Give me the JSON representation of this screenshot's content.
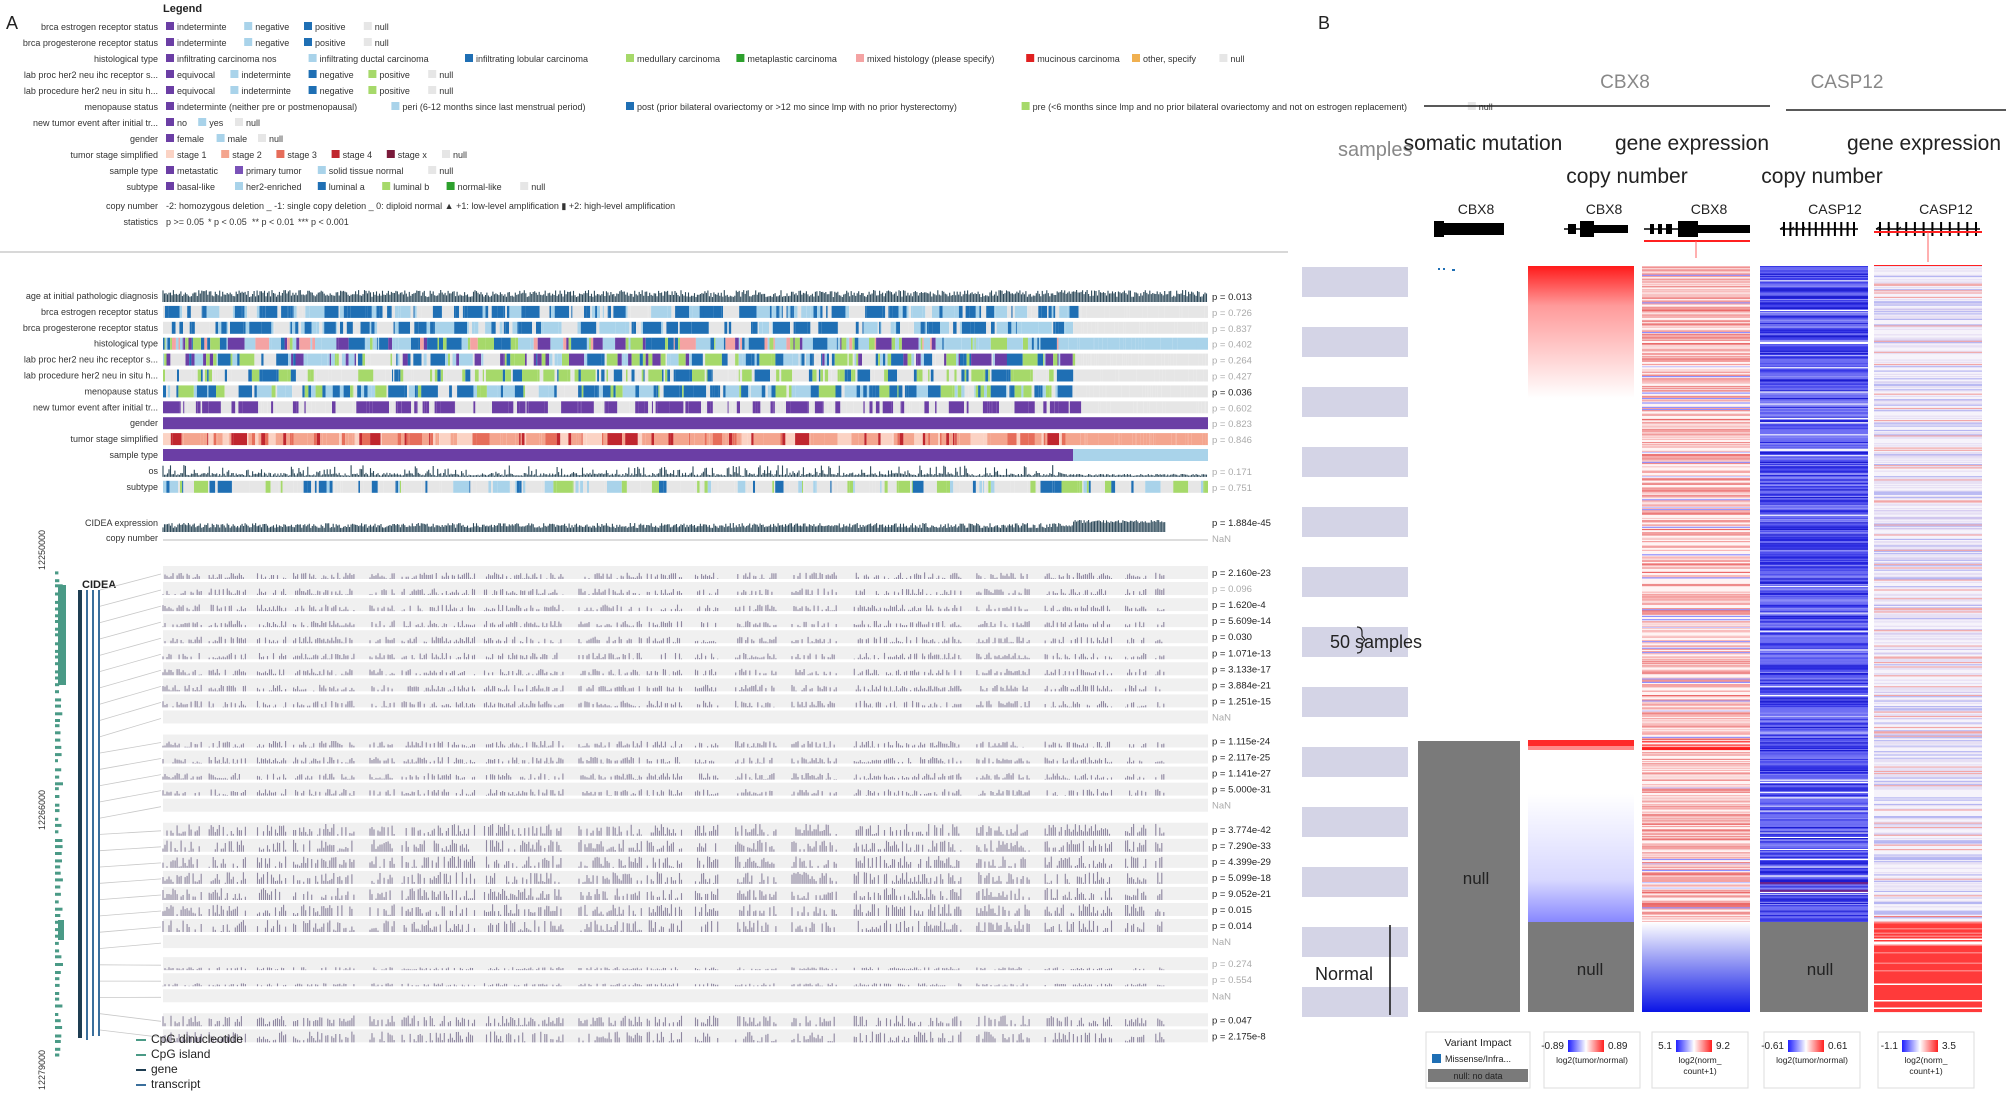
{
  "panel_a": {
    "label": "A",
    "legend_title": "Legend",
    "legend_rows": [
      {
        "label": "brca estrogen receptor status",
        "items": [
          [
            "indeterminte",
            "#6b3ea5"
          ],
          [
            "negative",
            "#a9d3ea"
          ],
          [
            "positive",
            "#1f6fb4"
          ],
          [
            "null",
            "#e6e6e6"
          ]
        ]
      },
      {
        "label": "brca progesterone receptor status",
        "items": [
          [
            "indeterminte",
            "#6b3ea5"
          ],
          [
            "negative",
            "#a9d3ea"
          ],
          [
            "positive",
            "#1f6fb4"
          ],
          [
            "null",
            "#e6e6e6"
          ]
        ]
      },
      {
        "label": "histological type",
        "items": [
          [
            "infiltrating carcinoma nos",
            "#6b3ea5"
          ],
          [
            "infiltrating ductal carcinoma",
            "#a9d3ea"
          ],
          [
            "infiltrating lobular carcinoma",
            "#1f6fb4"
          ],
          [
            "medullary carcinoma",
            "#a6d96a"
          ],
          [
            "metaplastic carcinoma",
            "#2ca02c"
          ],
          [
            "mixed histology (please specify)",
            "#f4a3a3"
          ],
          [
            "mucinous carcinoma",
            "#e02020"
          ],
          [
            "other, specify",
            "#f0b050"
          ],
          [
            "null",
            "#e6e6e6"
          ]
        ]
      },
      {
        "label": "lab proc her2 neu ihc receptor s...",
        "items": [
          [
            "equivocal",
            "#6b3ea5"
          ],
          [
            "indeterminte",
            "#a9d3ea"
          ],
          [
            "negative",
            "#1f6fb4"
          ],
          [
            "positive",
            "#a6d96a"
          ],
          [
            "null",
            "#e6e6e6"
          ]
        ]
      },
      {
        "label": "lab procedure her2 neu in situ h...",
        "items": [
          [
            "equivocal",
            "#6b3ea5"
          ],
          [
            "indeterminte",
            "#a9d3ea"
          ],
          [
            "negative",
            "#1f6fb4"
          ],
          [
            "positive",
            "#a6d96a"
          ],
          [
            "null",
            "#e6e6e6"
          ]
        ]
      },
      {
        "label": "menopause status",
        "items": [
          [
            "indeterminte (neither pre or postmenopausal)",
            "#6b3ea5"
          ],
          [
            "peri (6-12 months since last menstrual period)",
            "#a9d3ea"
          ],
          [
            "post (prior bilateral ovariectomy or >12 mo since lmp with no prior hysterectomy)",
            "#1f6fb4"
          ],
          [
            "pre (<6 months since lmp and no prior bilateral ovariectomy and not on estrogen replacement)",
            "#a6d96a"
          ],
          [
            "null",
            "#e6e6e6"
          ]
        ]
      },
      {
        "label": "new tumor event after initial tr...",
        "items": [
          [
            "no",
            "#6b3ea5"
          ],
          [
            "yes",
            "#a9d3ea"
          ],
          [
            "null",
            "#e6e6e6"
          ]
        ]
      },
      {
        "label": "gender",
        "items": [
          [
            "female",
            "#6b3ea5"
          ],
          [
            "male",
            "#a9d3ea"
          ],
          [
            "null",
            "#e6e6e6"
          ]
        ]
      },
      {
        "label": "tumor stage simplified",
        "items": [
          [
            "stage 1",
            "#fbd3c4"
          ],
          [
            "stage 2",
            "#f4a58e"
          ],
          [
            "stage 3",
            "#e66d5a"
          ],
          [
            "stage 4",
            "#c0262e"
          ],
          [
            "stage x",
            "#7a1a3a"
          ],
          [
            "null",
            "#e6e6e6"
          ]
        ]
      },
      {
        "label": "sample type",
        "items": [
          [
            "metastatic",
            "#6b3ea5"
          ],
          [
            "primary tumor",
            "#7a52b8"
          ],
          [
            "solid tissue normal",
            "#a9d3ea"
          ],
          [
            "null",
            "#e6e6e6"
          ]
        ]
      },
      {
        "label": "subtype",
        "items": [
          [
            "basal-like",
            "#6b3ea5"
          ],
          [
            "her2-enriched",
            "#a9d3ea"
          ],
          [
            "luminal a",
            "#1f6fb4"
          ],
          [
            "luminal b",
            "#a6d96a"
          ],
          [
            "normal-like",
            "#2ca02c"
          ],
          [
            "null",
            "#e6e6e6"
          ]
        ]
      }
    ],
    "copy_number_label": "copy number",
    "copy_number_legend": "-2: homozygous deletion _ -1: single copy deletion _ 0: diploid normal ▲ +1: low-level amplification ▮ +2: high-level amplification",
    "statistics_label": "statistics",
    "statistics_legend": [
      "p >= 0.05",
      "* p < 0.05",
      "** p < 0.01",
      "*** p < 0.001"
    ],
    "clinical_tracks": [
      {
        "label": "age at initial pathologic diagnosis",
        "p": "p = 0.013",
        "sig": true,
        "kind": "bars"
      },
      {
        "label": "brca estrogen receptor status",
        "p": "p = 0.726",
        "sig": false,
        "kind": "cat",
        "palette": [
          "#1f6fb4",
          "#1f6fb4",
          "#a9d3ea",
          "#e6e6e6"
        ]
      },
      {
        "label": "brca progesterone receptor status",
        "p": "p = 0.837",
        "sig": false,
        "kind": "cat",
        "palette": [
          "#1f6fb4",
          "#a9d3ea",
          "#e6e6e6",
          "#1f6fb4"
        ]
      },
      {
        "label": "histological type",
        "p": "p = 0.402",
        "sig": false,
        "kind": "cat",
        "palette": [
          "#a9d3ea",
          "#a9d3ea",
          "#1f6fb4",
          "#6b3ea5",
          "#f4a3a3",
          "#a6d96a"
        ]
      },
      {
        "label": "lab proc her2 neu ihc receptor s...",
        "p": "p = 0.264",
        "sig": false,
        "kind": "cat",
        "palette": [
          "#1f6fb4",
          "#e6e6e6",
          "#a9d3ea",
          "#a6d96a",
          "#6b3ea5"
        ]
      },
      {
        "label": "lab procedure her2 neu in situ h...",
        "p": "p = 0.427",
        "sig": false,
        "kind": "cat",
        "palette": [
          "#e6e6e6",
          "#e6e6e6",
          "#1f6fb4",
          "#a6d96a"
        ]
      },
      {
        "label": "menopause status",
        "p": "p = 0.036",
        "sig": true,
        "kind": "cat",
        "palette": [
          "#1f6fb4",
          "#1f6fb4",
          "#a6d96a",
          "#e6e6e6",
          "#a9d3ea"
        ]
      },
      {
        "label": "new tumor event after initial tr...",
        "p": "p = 0.602",
        "sig": false,
        "kind": "cat",
        "palette": [
          "#6b3ea5",
          "#6b3ea5",
          "#e6e6e6",
          "#e6e6e6"
        ]
      },
      {
        "label": "gender",
        "p": "p = 0.823",
        "sig": false,
        "kind": "solid",
        "color": "#6b3ea5"
      },
      {
        "label": "tumor stage simplified",
        "p": "p = 0.846",
        "sig": false,
        "kind": "cat",
        "palette": [
          "#f4a58e",
          "#fbd3c4",
          "#e66d5a",
          "#f4a58e",
          "#c0262e"
        ]
      },
      {
        "label": "sample type",
        "p": "",
        "sig": false,
        "kind": "split",
        "colors": [
          "#6b3ea5",
          "#a9d3ea"
        ]
      },
      {
        "label": "os",
        "p": "p = 0.171",
        "sig": false,
        "kind": "os"
      },
      {
        "label": "subtype",
        "p": "p = 0.751",
        "sig": false,
        "kind": "cat",
        "palette": [
          "#e6e6e6",
          "#e6e6e6",
          "#1f6fb4",
          "#a9d3ea",
          "#a6d96a",
          "#e6e6e6"
        ]
      }
    ],
    "expr_label": "CIDEA expression",
    "expr_p": "p = 1.884e-45",
    "cn_label": "copy number",
    "cn_p": "NaN",
    "gene_label": "CIDEA",
    "genomic_ticks": [
      "12250000",
      "12266000",
      "12279000"
    ],
    "meth_rows": [
      {
        "p": "p = 2.160e-23",
        "sig": true
      },
      {
        "p": "p = 0.096",
        "sig": false
      },
      {
        "p": "p = 1.620e-4",
        "sig": true
      },
      {
        "p": "p = 5.609e-14",
        "sig": true
      },
      {
        "p": "p = 0.030",
        "sig": true
      },
      {
        "p": "p = 1.071e-13",
        "sig": true
      },
      {
        "p": "p = 3.133e-17",
        "sig": true
      },
      {
        "p": "p = 3.884e-21",
        "sig": true
      },
      {
        "p": "p = 1.251e-15",
        "sig": true
      },
      {
        "p": "NaN",
        "sig": false
      },
      {
        "p": "p = 1.115e-24",
        "sig": true
      },
      {
        "p": "p = 2.117e-25",
        "sig": true
      },
      {
        "p": "p = 1.141e-27",
        "sig": true
      },
      {
        "p": "p = 5.000e-31",
        "sig": true
      },
      {
        "p": "NaN",
        "sig": false
      },
      {
        "p": "p = 3.774e-42",
        "sig": true
      },
      {
        "p": "p = 7.290e-33",
        "sig": true
      },
      {
        "p": "p = 4.399e-29",
        "sig": true
      },
      {
        "p": "p = 5.099e-18",
        "sig": true
      },
      {
        "p": "p = 9.052e-21",
        "sig": true
      },
      {
        "p": "p = 0.015",
        "sig": true
      },
      {
        "p": "p = 0.014",
        "sig": true
      },
      {
        "p": "NaN",
        "sig": false
      },
      {
        "p": "p = 0.274",
        "sig": false
      },
      {
        "p": "p = 0.554",
        "sig": false
      },
      {
        "p": "NaN",
        "sig": false
      },
      {
        "p": "p = 0.047",
        "sig": true
      },
      {
        "p": "p = 2.175e-8",
        "sig": true
      }
    ],
    "bottom_legend": [
      {
        "label": "CpG dinucleotide",
        "color": "#4a9a86"
      },
      {
        "label": "CpG island",
        "color": "#4a9a86"
      },
      {
        "label": "gene",
        "color": "#1e3d52"
      },
      {
        "label": "transcript",
        "color": "#3b6f9c"
      }
    ]
  },
  "panel_b": {
    "label": "B",
    "gene1": "CBX8",
    "gene2": "CASP12",
    "samples_label": "samples",
    "col_somatic": "somatic mutation",
    "col_expression": "gene expression",
    "col_copy": "copy number",
    "col_expression2": "gene expression",
    "col_copy2": "copy number",
    "track_gene_labels": [
      "CBX8",
      "CBX8",
      "CBX8",
      "CASP12",
      "CASP12"
    ],
    "scale_label": "50 samples",
    "normal_label": "Normal",
    "null_label": "null",
    "legends": {
      "variant_title": "Variant Impact",
      "variant_item": "Missense/Infra...",
      "variant_null": "null: no data",
      "cn1": {
        "min": "-0.89",
        "max": "0.89",
        "unit": "log2(tumor/normal)"
      },
      "ge1": {
        "min": "5.1",
        "max": "9.2",
        "unit1": "log2(norm_",
        "unit2": "count+1)"
      },
      "cn2": {
        "min": "-0.61",
        "max": "0.61",
        "unit": "log2(tumor/normal)"
      },
      "ge2": {
        "min": "-1.1",
        "max": "3.5",
        "unit1": "log2(norm_",
        "unit2": "count+1)"
      }
    }
  }
}
